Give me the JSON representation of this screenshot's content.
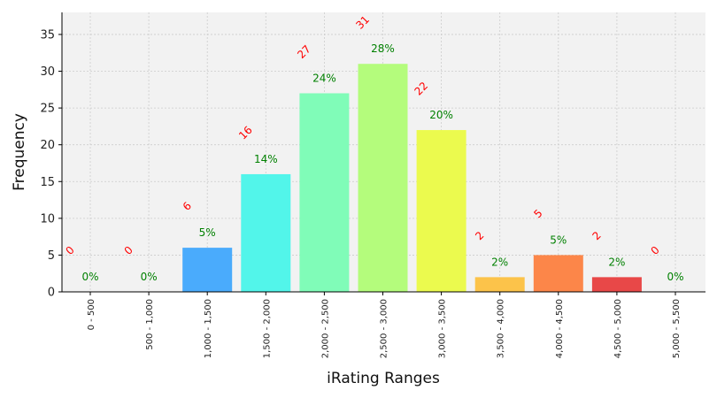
{
  "chart_data": {
    "type": "bar",
    "xlabel": "iRating Ranges",
    "ylabel": "Frequency",
    "ylim": [
      0,
      38
    ],
    "yticks": [
      0,
      5,
      10,
      15,
      20,
      25,
      30,
      35
    ],
    "grid": true,
    "categories": [
      "0 - 500",
      "500 - 1,000",
      "1,000 - 1,500",
      "1,500 - 2,000",
      "2,000 - 2,500",
      "2,500 - 3,000",
      "3,000 - 3,500",
      "3,500 - 4,000",
      "4,000 - 4,500",
      "4,500 - 5,000",
      "5,000 - 5,500"
    ],
    "values": [
      0,
      0,
      6,
      16,
      27,
      31,
      22,
      2,
      5,
      2,
      0
    ],
    "percent_labels": [
      "0%",
      "0%",
      "5%",
      "14%",
      "24%",
      "28%",
      "20%",
      "2%",
      "5%",
      "2%",
      "0%"
    ],
    "bar_colors": [
      "#3b3bd6",
      "#3b6ff5",
      "#4aabfc",
      "#52f5ea",
      "#80fcb8",
      "#b4fc7c",
      "#ebfa4e",
      "#fcc34a",
      "#fc8649",
      "#e84848",
      "#8a1010"
    ],
    "count_label_color": "#ff0000",
    "percent_label_color": "#008000",
    "plot_background": "#f2f2f2",
    "grid_color": "#cccccc"
  }
}
